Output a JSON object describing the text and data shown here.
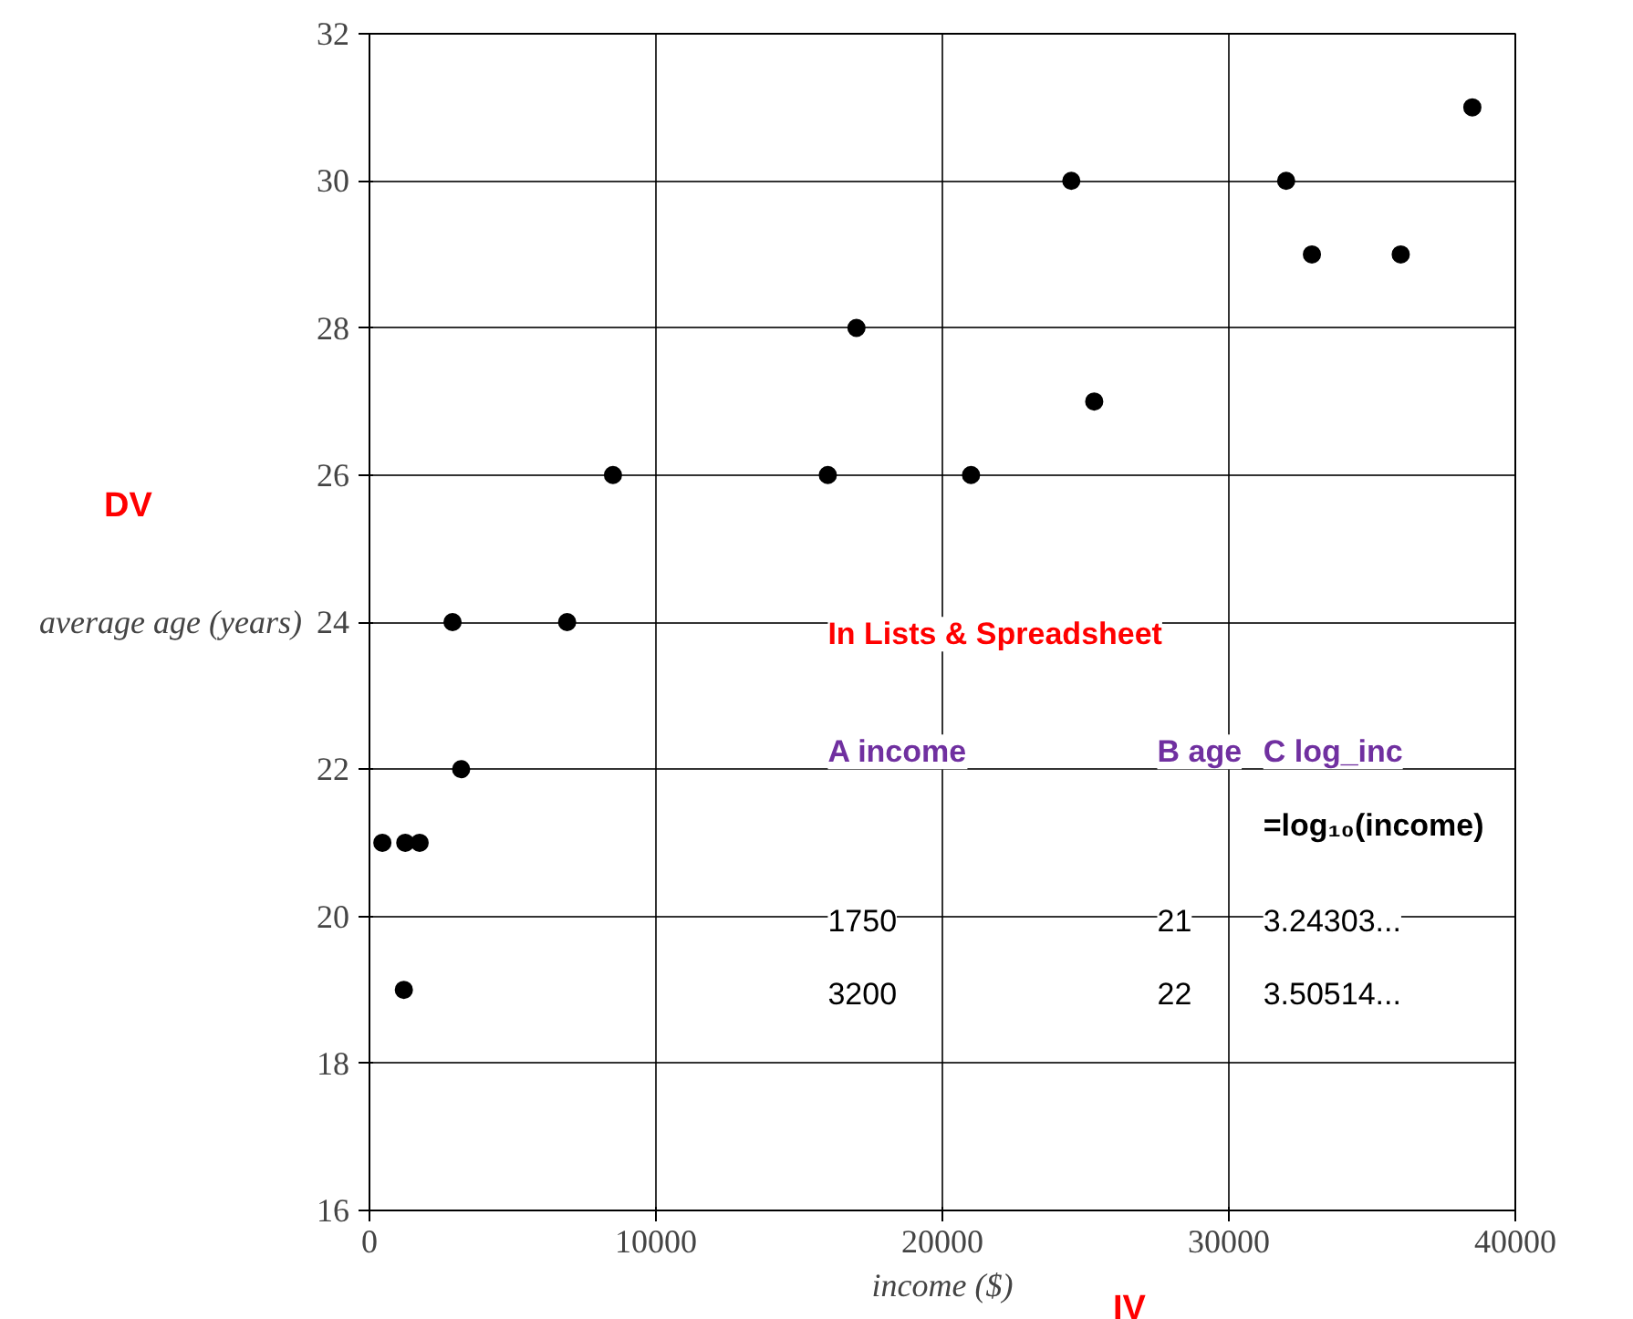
{
  "chart_data": {
    "type": "scatter",
    "xlabel": "income ($)",
    "ylabel": "average age (years)",
    "x": [
      450,
      1250,
      1750,
      1200,
      2900,
      3200,
      6900,
      8500,
      16000,
      17000,
      21000,
      24500,
      25300,
      32000,
      32900,
      36000,
      38500
    ],
    "values": [
      21,
      21,
      21,
      19,
      24,
      22,
      24,
      26,
      26,
      28,
      26,
      30,
      27,
      30,
      29,
      29,
      31
    ],
    "color": "#000000",
    "marker": "circle",
    "grid": true,
    "xlim": [
      0,
      40000
    ],
    "xticks": [
      0,
      10000,
      20000,
      30000,
      40000
    ],
    "ylim": [
      16,
      32
    ],
    "yticks": [
      16,
      18,
      20,
      22,
      24,
      26,
      28,
      30,
      32
    ],
    "annotations": [
      "DV",
      "IV",
      "In Lists & Spreadsheet",
      "A income",
      "B age",
      "C log_inc",
      "=log₁₀(income)",
      "1750",
      "21",
      "3.24303...",
      "3200",
      "22",
      "3.50514..."
    ]
  }
}
